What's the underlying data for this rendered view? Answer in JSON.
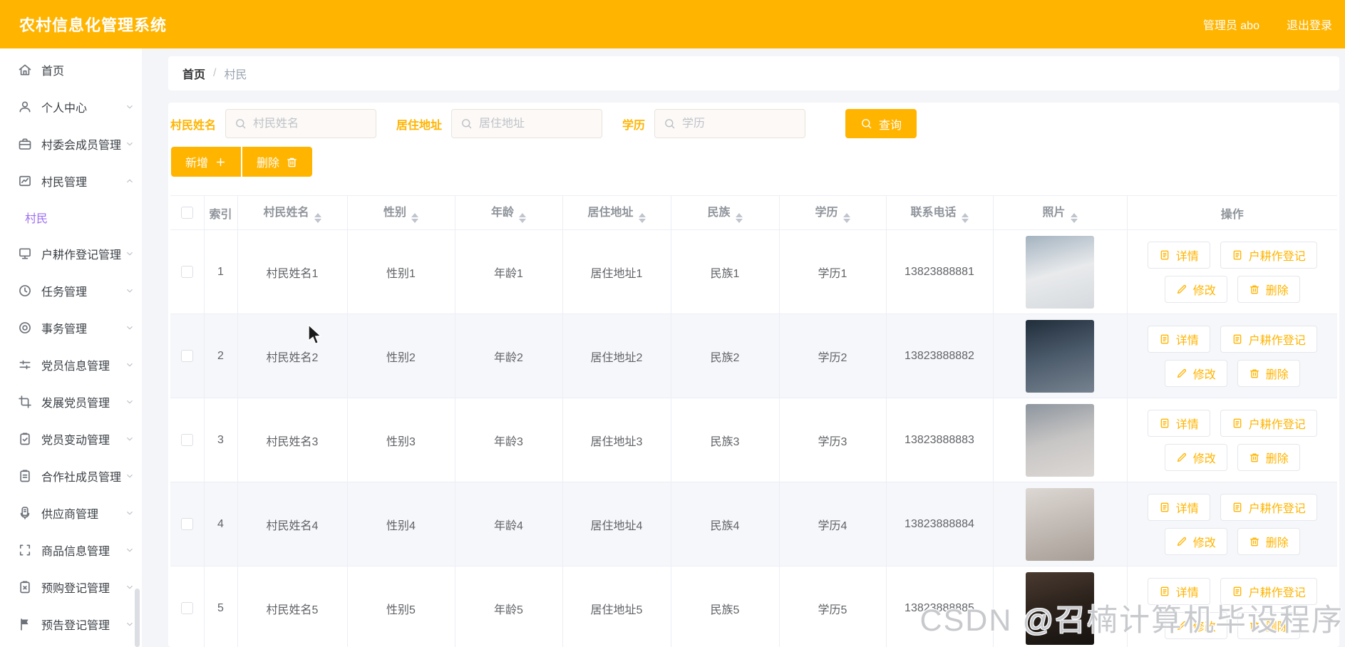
{
  "header": {
    "title": "农村信息化管理系统",
    "user": "管理员 abo",
    "logout": "退出登录"
  },
  "sidebar": {
    "items": [
      {
        "label": "首页",
        "icon": "home",
        "chevron": ""
      },
      {
        "label": "个人中心",
        "icon": "user",
        "chevron": "down"
      },
      {
        "label": "村委会成员管理",
        "icon": "briefcase",
        "chevron": "down"
      },
      {
        "label": "村民管理",
        "icon": "trend-chart",
        "chevron": "up",
        "expanded": true
      },
      {
        "label": "村民",
        "type": "sub",
        "active": true
      },
      {
        "label": "户耕作登记管理",
        "icon": "monitor",
        "chevron": "down"
      },
      {
        "label": "任务管理",
        "icon": "clock",
        "chevron": "down"
      },
      {
        "label": "事务管理",
        "icon": "record-circle",
        "chevron": "down"
      },
      {
        "label": "党员信息管理",
        "icon": "sliders",
        "chevron": "down"
      },
      {
        "label": "发展党员管理",
        "icon": "crop",
        "chevron": "down"
      },
      {
        "label": "党员变动管理",
        "icon": "clipboard-check",
        "chevron": "down"
      },
      {
        "label": "合作社成员管理",
        "icon": "clipboard",
        "chevron": "down"
      },
      {
        "label": "供应商管理",
        "icon": "badge",
        "chevron": "down"
      },
      {
        "label": "商品信息管理",
        "icon": "brackets",
        "chevron": "down"
      },
      {
        "label": "预购登记管理",
        "icon": "clipboard-x",
        "chevron": "down"
      },
      {
        "label": "预告登记管理",
        "icon": "flag",
        "chevron": "down"
      }
    ]
  },
  "breadcrumb": {
    "home": "首页",
    "separator": "/",
    "current": "村民"
  },
  "filters": [
    {
      "label": "村民姓名",
      "placeholder": "村民姓名",
      "value": ""
    },
    {
      "label": "居住地址",
      "placeholder": "居住地址",
      "value": ""
    },
    {
      "label": "学历",
      "placeholder": "学历",
      "value": ""
    }
  ],
  "search_button": "查询",
  "toolbar": {
    "add": "新增",
    "delete": "删除"
  },
  "table": {
    "columns": [
      {
        "label": "",
        "type": "checkbox",
        "sortable": false
      },
      {
        "label": "索引",
        "sortable": false
      },
      {
        "label": "村民姓名",
        "sortable": true
      },
      {
        "label": "性别",
        "sortable": true
      },
      {
        "label": "年龄",
        "sortable": true
      },
      {
        "label": "居住地址",
        "sortable": true
      },
      {
        "label": "民族",
        "sortable": true
      },
      {
        "label": "学历",
        "sortable": true
      },
      {
        "label": "联系电话",
        "sortable": true
      },
      {
        "label": "照片",
        "sortable": true
      },
      {
        "label": "操作",
        "sortable": false
      }
    ],
    "rows": [
      {
        "index": "1",
        "name": "村民姓名1",
        "gender": "性别1",
        "age": "年龄1",
        "address": "居住地址1",
        "ethnicity": "民族1",
        "education": "学历1",
        "phone": "13823888881",
        "photo_colors": [
          "#a4b3c0",
          "#e8eaec",
          "#d6dade"
        ]
      },
      {
        "index": "2",
        "name": "村民姓名2",
        "gender": "性别2",
        "age": "年龄2",
        "address": "居住地址2",
        "ethnicity": "民族2",
        "education": "学历2",
        "phone": "13823888882",
        "photo_colors": [
          "#202d3b",
          "#4d5c6c",
          "#76828f"
        ]
      },
      {
        "index": "3",
        "name": "村民姓名3",
        "gender": "性别3",
        "age": "年龄3",
        "address": "居住地址3",
        "ethnicity": "民族3",
        "education": "学历3",
        "phone": "13823888883",
        "photo_colors": [
          "#8d959e",
          "#c8c6c5",
          "#dcd8d5"
        ]
      },
      {
        "index": "4",
        "name": "村民姓名4",
        "gender": "性别4",
        "age": "年龄4",
        "address": "居住地址4",
        "ethnicity": "民族4",
        "education": "学历4",
        "phone": "13823888884",
        "photo_colors": [
          "#ddd8d4",
          "#c2bab4",
          "#a79e97"
        ]
      },
      {
        "index": "5",
        "name": "村民姓名5",
        "gender": "性别5",
        "age": "年龄5",
        "address": "居住地址5",
        "ethnicity": "民族5",
        "education": "学历5",
        "phone": "13823888885",
        "photo_colors": [
          "#4a3a30",
          "#2a211b",
          "#171310"
        ]
      }
    ],
    "row_actions": [
      {
        "label": "详情",
        "icon": "doc",
        "name": "detail-button"
      },
      {
        "label": "户耕作登记",
        "icon": "doc",
        "name": "farming-register-button"
      },
      {
        "label": "修改",
        "icon": "pencil",
        "name": "edit-button"
      },
      {
        "label": "删除",
        "icon": "trash",
        "name": "delete-row-button"
      }
    ]
  },
  "watermark": "CSDN @召楠计算机毕设程序",
  "colors": {
    "accent": "#ffb400",
    "submenu_active": "#9d6ef0",
    "header_bg": "#ffb400",
    "stripe_row": "#f6f7fa"
  }
}
